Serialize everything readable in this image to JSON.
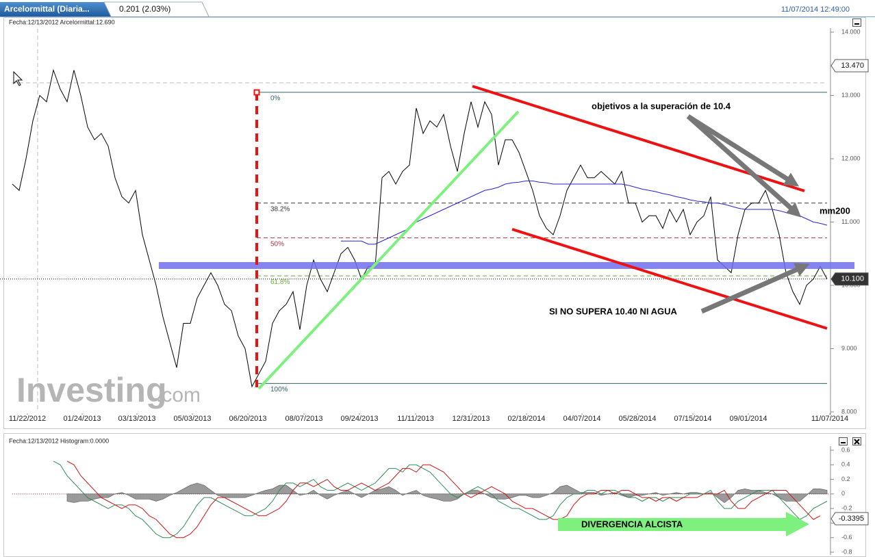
{
  "header": {
    "tab": "Arcelormittal (Diaria...",
    "change": "0.201 (2.03%)",
    "timestamp": "11/07/2014 12:49:00"
  },
  "chart_data": [
    {
      "type": "line",
      "info": "Fecha:12/13/2012 Arcelormittal:12.690",
      "watermark": [
        "Investing",
        ".com"
      ],
      "annotations": [
        "objetivos a la superación de 10.4",
        "SI NO SUPERA 10.40 NI AGUA"
      ],
      "xlim": [
        0,
        119.2
      ],
      "xticks": [
        {
          "value": 2.2,
          "label": "11/22/2012"
        },
        {
          "value": 10.2,
          "label": "01/24/2013"
        },
        {
          "value": 18.2,
          "label": "03/13/2013"
        },
        {
          "value": 26.3,
          "label": "05/03/2013"
        },
        {
          "value": 34.4,
          "label": "06/20/2013"
        },
        {
          "value": 42.6,
          "label": "08/07/2013"
        },
        {
          "value": 50.7,
          "label": "09/24/2013"
        },
        {
          "value": 58.9,
          "label": "11/11/2013"
        },
        {
          "value": 67,
          "label": "12/31/2013"
        },
        {
          "value": 75.1,
          "label": "02/18/2014"
        },
        {
          "value": 83.2,
          "label": "04/07/2014"
        },
        {
          "value": 91.3,
          "label": "05/28/2014"
        },
        {
          "value": 99.4,
          "label": "07/15/2014"
        },
        {
          "value": 107.5,
          "label": "09/01/2014"
        },
        {
          "value": 119.4,
          "label": "11/07/2014"
        }
      ],
      "ylim": [
        8,
        14
      ],
      "yticks": [
        {
          "value": 14,
          "label": "14.000"
        },
        {
          "value": 13,
          "label": "13.000"
        },
        {
          "value": 12,
          "label": "12.000"
        },
        {
          "value": 11,
          "label": "11.000"
        },
        {
          "value": 10,
          "label": "10.000"
        },
        {
          "value": 9,
          "label": "9.000"
        },
        {
          "value": 8,
          "label": "8.000"
        }
      ],
      "price_tags": [
        {
          "value": 13.47,
          "label": "13.470"
        },
        {
          "value": 10.1,
          "label": "10.100"
        }
      ],
      "retracements": [
        {
          "price": 13.05,
          "label": "0%",
          "color": "#2f5f6f",
          "dash": false
        },
        {
          "price": 11.3,
          "label": "38.2%",
          "color": "#333333",
          "dash": true
        },
        {
          "price": 10.75,
          "label": "50%",
          "color": "#b03040",
          "dash": true
        },
        {
          "price": 10.15,
          "label": "61.8%",
          "color": "#66aa33",
          "dash": true
        },
        {
          "price": 8.45,
          "label": "100%",
          "color": "#2f5f6f",
          "dash": false
        }
      ],
      "series": [
        {
          "color": "#000000",
          "values": [
            11.6,
            11.5,
            12.0,
            12.6,
            13.0,
            12.9,
            13.4,
            13.1,
            12.9,
            13.4,
            13.0,
            12.5,
            12.3,
            12.4,
            12.2,
            11.7,
            11.4,
            11.3,
            11.5,
            10.8,
            10.4,
            10.0,
            9.5,
            9.1,
            8.7,
            9.4,
            9.4,
            9.8,
            10.0,
            10.2,
            10.0,
            9.7,
            9.6,
            9.2,
            9.0,
            8.4,
            8.6,
            8.8,
            9.4,
            9.6,
            9.7,
            9.9,
            9.3,
            10.0,
            10.4,
            10.1,
            9.9,
            10.2,
            10.5,
            10.6,
            10.4,
            10.1,
            10.3,
            10.3,
            11.7,
            11.8,
            11.6,
            11.8,
            11.9,
            12.8,
            12.4,
            12.6,
            12.5,
            12.7,
            12.2,
            11.8,
            12.4,
            12.9,
            12.5,
            12.9,
            12.7,
            11.9,
            12.3,
            12.3,
            12.1,
            11.8,
            11.5,
            11.1,
            10.9,
            10.8,
            11.1,
            11.5,
            11.7,
            11.9,
            11.7,
            11.7,
            11.8,
            11.7,
            11.6,
            11.8,
            11.3,
            11.3,
            11.0,
            11.1,
            11.1,
            10.9,
            11.2,
            11.0,
            11.2,
            10.8,
            11.0,
            11.1,
            11.4,
            10.4,
            10.3,
            10.2,
            10.8,
            11.2,
            11.3,
            11.3,
            11.5,
            11.2,
            10.8,
            10.2,
            9.9,
            9.7,
            10.0,
            10.1,
            10.3,
            10.1
          ]
        },
        {
          "name": "mm200",
          "color": "#2323d8",
          "values": [
            null,
            null,
            null,
            null,
            null,
            null,
            null,
            null,
            null,
            null,
            null,
            null,
            null,
            null,
            null,
            null,
            null,
            null,
            null,
            null,
            null,
            null,
            null,
            null,
            null,
            null,
            null,
            null,
            null,
            null,
            null,
            null,
            null,
            null,
            null,
            null,
            null,
            null,
            null,
            null,
            null,
            null,
            null,
            null,
            null,
            null,
            null,
            null,
            10.7,
            10.7,
            10.7,
            10.7,
            10.65,
            10.65,
            10.7,
            10.75,
            10.8,
            10.85,
            10.9,
            11.0,
            11.05,
            11.1,
            11.15,
            11.2,
            11.25,
            11.3,
            11.35,
            11.4,
            11.45,
            11.5,
            11.52,
            11.55,
            11.6,
            11.62,
            11.63,
            11.65,
            11.65,
            11.63,
            11.62,
            11.6,
            11.6,
            11.6,
            11.6,
            11.6,
            11.6,
            11.6,
            11.6,
            11.6,
            11.6,
            11.6,
            11.58,
            11.55,
            11.52,
            11.5,
            11.48,
            11.45,
            11.43,
            11.4,
            11.38,
            11.35,
            11.33,
            11.32,
            11.3,
            11.3,
            11.28,
            11.25,
            11.22,
            11.2,
            11.2,
            11.2,
            11.2,
            11.2,
            11.18,
            11.15,
            11.12,
            11.1,
            11.05,
            11.0,
            10.98,
            10.95
          ]
        }
      ]
    },
    {
      "type": "line",
      "info": "Fecha:12/13/2012 Histogram:0.0000",
      "annotations": [
        "DIVERGENCIA ALCISTA"
      ],
      "xlim": [
        0,
        119.2
      ],
      "ylim": [
        -0.8,
        0.6
      ],
      "yticks": [
        0.6,
        0.4,
        0.2,
        0,
        -0.2,
        -0.4,
        -0.6,
        -0.8
      ],
      "price_tags": [
        -0.3395
      ],
      "series": [
        {
          "type": "area",
          "color": "#9a9a9a",
          "values": [
            null,
            null,
            null,
            null,
            null,
            null,
            null,
            null,
            -0.1,
            -0.12,
            -0.1,
            -0.1,
            -0.07,
            -0.05,
            -0.05,
            0,
            0.02,
            -0.02,
            -0.07,
            -0.07,
            -0.07,
            -0.1,
            -0.07,
            -0.02,
            0.02,
            0.07,
            0.12,
            0.15,
            0.12,
            0.05,
            -0.02,
            -0.05,
            -0.05,
            -0.05,
            -0.05,
            -0.02,
            0.02,
            0.05,
            0.07,
            0.12,
            0.12,
            0.05,
            -0.02,
            0,
            0.05,
            -0.02,
            -0.07,
            -0.02,
            0.02,
            0.05,
            0,
            -0.05,
            0,
            0.05,
            0.07,
            0.1,
            0.05,
            -0.02,
            0.02,
            0.05,
            -0.02,
            -0.05,
            -0.07,
            -0.1,
            -0.1,
            -0.07,
            0,
            0.05,
            0.05,
            0,
            -0.05,
            -0.07,
            -0.07,
            -0.05,
            -0.02,
            -0.02,
            -0.05,
            -0.05,
            -0.02,
            0.02,
            0.1,
            0.12,
            0.07,
            0.02,
            0.02,
            0.02,
            -0.02,
            0,
            0.02,
            -0.02,
            -0.05,
            -0.02,
            -0.02,
            0,
            0.02,
            -0.02,
            0,
            0.02,
            0,
            0.02,
            0.02,
            0,
            0.02,
            -0.05,
            -0.12,
            -0.05,
            0.05,
            0.07,
            0.05,
            0.05,
            0.02,
            0,
            -0.05,
            -0.1,
            -0.1,
            -0.1,
            -0.02,
            0.07,
            0.07,
            0.05
          ]
        },
        {
          "color": "#2e8b57",
          "values": [
            null,
            null,
            null,
            null,
            null,
            null,
            0.45,
            0.4,
            0.25,
            0.15,
            0.05,
            -0.05,
            -0.1,
            -0.15,
            -0.2,
            -0.15,
            -0.15,
            -0.2,
            -0.3,
            -0.35,
            -0.45,
            -0.55,
            -0.6,
            -0.6,
            -0.55,
            -0.45,
            -0.3,
            -0.15,
            -0.05,
            -0.05,
            -0.1,
            -0.15,
            -0.2,
            -0.25,
            -0.3,
            -0.3,
            -0.25,
            -0.2,
            -0.1,
            0.05,
            0.15,
            0.15,
            0.1,
            0.15,
            0.2,
            0.1,
            0.05,
            0.05,
            0.1,
            0.15,
            0.1,
            0.05,
            0.1,
            0.15,
            0.25,
            0.35,
            0.35,
            0.3,
            0.4,
            0.4,
            0.35,
            0.3,
            0.2,
            0.1,
            0.0,
            -0.05,
            0.0,
            0.05,
            0.1,
            0.05,
            0.0,
            -0.1,
            -0.15,
            -0.2,
            -0.2,
            -0.25,
            -0.3,
            -0.35,
            -0.35,
            -0.3,
            -0.15,
            -0.05,
            0.0,
            0.0,
            0.05,
            0.05,
            0.0,
            0.05,
            0.05,
            0.0,
            -0.05,
            -0.05,
            -0.1,
            -0.05,
            -0.05,
            -0.1,
            -0.05,
            -0.05,
            -0.05,
            0.0,
            0.0,
            0.0,
            0.05,
            -0.1,
            -0.2,
            -0.2,
            -0.1,
            -0.05,
            0.0,
            0.05,
            0.05,
            0.05,
            -0.05,
            -0.15,
            -0.25,
            -0.35,
            -0.3,
            -0.2,
            -0.15,
            -0.1
          ]
        },
        {
          "color": "#cc1111",
          "values": [
            null,
            null,
            null,
            null,
            null,
            null,
            null,
            null,
            0.45,
            0.4,
            0.25,
            0.15,
            0.05,
            -0.05,
            -0.1,
            -0.15,
            -0.2,
            -0.15,
            -0.15,
            -0.2,
            -0.3,
            -0.35,
            -0.45,
            -0.55,
            -0.6,
            -0.6,
            -0.55,
            -0.45,
            -0.3,
            -0.15,
            -0.05,
            -0.05,
            -0.1,
            -0.15,
            -0.2,
            -0.25,
            -0.3,
            -0.3,
            -0.25,
            -0.2,
            -0.1,
            0.05,
            0.15,
            0.15,
            0.1,
            0.15,
            0.2,
            0.1,
            0.05,
            0.05,
            0.1,
            0.15,
            0.1,
            0.05,
            0.1,
            0.15,
            0.25,
            0.35,
            0.35,
            0.3,
            0.4,
            0.4,
            0.35,
            0.3,
            0.2,
            0.1,
            0.0,
            -0.05,
            0.0,
            0.05,
            0.1,
            0.05,
            0.0,
            -0.1,
            -0.15,
            -0.2,
            -0.2,
            -0.25,
            -0.3,
            -0.35,
            -0.35,
            -0.3,
            -0.15,
            -0.05,
            0.0,
            0.0,
            0.05,
            0.05,
            0.0,
            0.05,
            0.05,
            0.0,
            -0.05,
            -0.05,
            -0.1,
            -0.05,
            -0.05,
            -0.1,
            -0.05,
            -0.05,
            -0.05,
            0.0,
            0.0,
            0.0,
            0.05,
            -0.1,
            -0.2,
            -0.2,
            -0.1,
            -0.05,
            0.0,
            0.05,
            0.05,
            0.05,
            -0.05,
            -0.15,
            -0.25,
            -0.35,
            -0.3
          ]
        }
      ]
    }
  ]
}
